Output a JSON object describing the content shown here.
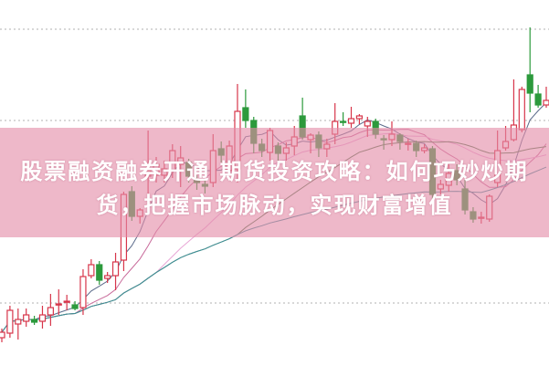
{
  "title": {
    "line1": "股票融资融券开通 期货投资攻略：如何巧妙炒期",
    "line2": "货，把握市场脉动，实现财富增值"
  },
  "colors": {
    "up": "#d7354a",
    "down": "#2c9a3c",
    "grid": "#b0b0b0",
    "band": "#e48ca8",
    "ma": [
      "#5a6a8a",
      "#c86a9a",
      "#e8a6d6",
      "#4e7a4e",
      "#3d8f9a"
    ]
  },
  "chart_data": {
    "type": "candlestick",
    "grid": "horizontal dotted",
    "ma_periods": [
      5,
      10,
      20,
      30,
      60
    ],
    "ohlc": [
      [
        7.5,
        9,
        10,
        6.25
      ],
      [
        8.75,
        15,
        16.25,
        7.5
      ],
      [
        11.25,
        12.5,
        15.5,
        7
      ],
      [
        12,
        13.75,
        15.5,
        10.5
      ],
      [
        12.5,
        11.75,
        13.5,
        11
      ],
      [
        12,
        13.75,
        16.25,
        10
      ],
      [
        13.75,
        15.75,
        19.5,
        10.75
      ],
      [
        16.5,
        16.75,
        20.75,
        13.75
      ],
      [
        17.25,
        17.5,
        19.25,
        15
      ],
      [
        16.5,
        15.5,
        17.5,
        15
      ],
      [
        15.75,
        24.25,
        26.25,
        13.75
      ],
      [
        24.5,
        27.5,
        29,
        23.75
      ],
      [
        27.5,
        23.25,
        28.5,
        22
      ],
      [
        23.75,
        24.5,
        25.5,
        22.5
      ],
      [
        24.5,
        28.25,
        30.75,
        20.5
      ],
      [
        28.75,
        46.75,
        47.5,
        25.75
      ],
      [
        47.5,
        40.75,
        49,
        39.5
      ],
      [
        40.75,
        42.5,
        43,
        38.75
      ],
      [
        51.75,
        53.25,
        64.25,
        45
      ],
      [
        52,
        55,
        57,
        50
      ],
      [
        52,
        53.75,
        56,
        50
      ],
      [
        53.25,
        58.75,
        60.5,
        51.25
      ],
      [
        55,
        56.75,
        60,
        48.75
      ],
      [
        55.5,
        51.75,
        56.5,
        50
      ],
      [
        50.75,
        50,
        52,
        48
      ],
      [
        49.5,
        49,
        50.5,
        47
      ],
      [
        50,
        58.75,
        63.25,
        48.75
      ],
      [
        59.25,
        57.5,
        61.25,
        55.5
      ],
      [
        53.25,
        60,
        61.5,
        52
      ],
      [
        53.75,
        69.5,
        77,
        50
      ],
      [
        70.5,
        67,
        75.5,
        65
      ],
      [
        67,
        60.75,
        68,
        58
      ],
      [
        60.5,
        58.75,
        62,
        57
      ],
      [
        58.25,
        64.25,
        65,
        56
      ],
      [
        60,
        58,
        61,
        56
      ],
      [
        58,
        59.5,
        61,
        56
      ],
      [
        60,
        62.5,
        65.5,
        57.5
      ],
      [
        68.25,
        62.5,
        73.25,
        61.75
      ],
      [
        61.75,
        63,
        63.5,
        58
      ],
      [
        63,
        59.5,
        64,
        57
      ],
      [
        59.25,
        60.5,
        62,
        57
      ],
      [
        63.25,
        66.75,
        71.75,
        60.5
      ],
      [
        66.75,
        66.5,
        69.25,
        65.5
      ],
      [
        66.25,
        67.5,
        70.75,
        65
      ],
      [
        67.5,
        68.25,
        68.75,
        66
      ],
      [
        65.5,
        66.75,
        68,
        62.5
      ],
      [
        66.75,
        63.25,
        67.5,
        62
      ],
      [
        62,
        61.75,
        63,
        59
      ],
      [
        61.75,
        63.25,
        66.75,
        60
      ],
      [
        63,
        61.25,
        63.5,
        59
      ],
      [
        60.75,
        60.75,
        62,
        58.75
      ],
      [
        60.75,
        58.75,
        61.5,
        57
      ],
      [
        58.75,
        59.5,
        60.5,
        58
      ],
      [
        59.25,
        46.75,
        60,
        45.5
      ],
      [
        48.25,
        49.5,
        50.75,
        46.75
      ],
      [
        49.25,
        52.5,
        55,
        47.5
      ],
      [
        53.25,
        50.75,
        55,
        49.25
      ],
      [
        48.25,
        42.5,
        50.75,
        41.25
      ],
      [
        42,
        40,
        43.25,
        39
      ],
      [
        40.5,
        40.5,
        42,
        38.75
      ],
      [
        40,
        46.25,
        46.75,
        39.25
      ],
      [
        50,
        58.75,
        64.25,
        48.75
      ],
      [
        59.5,
        61.25,
        65.5,
        58.75
      ],
      [
        61.75,
        65.75,
        78.25,
        61.25
      ],
      [
        64.5,
        75.5,
        76.25,
        63.75
      ],
      [
        79.5,
        74.5,
        92.5,
        69.25
      ],
      [
        74.25,
        71.25,
        76.75,
        70.5
      ],
      [
        71.25,
        72.5,
        76.25,
        70.5
      ]
    ],
    "ylim": [
      0,
      100
    ],
    "gridlines": [
      92,
      67,
      17
    ]
  }
}
